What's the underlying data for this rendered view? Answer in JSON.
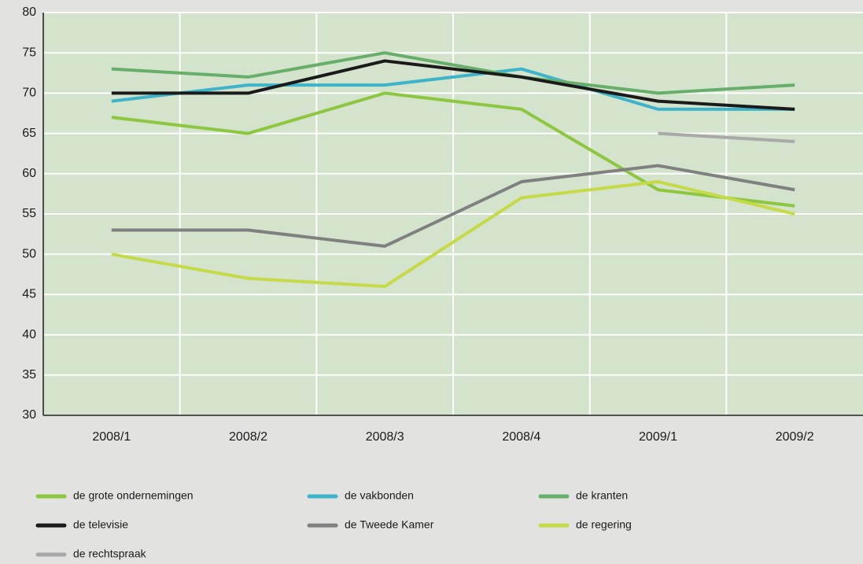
{
  "chart_data": {
    "type": "line",
    "categories": [
      "2008/1",
      "2008/2",
      "2008/3",
      "2008/4",
      "2009/1",
      "2009/2"
    ],
    "series": [
      {
        "name": "de grote ondernemingen",
        "color": "#8dc63f",
        "values": [
          67,
          65,
          70,
          68,
          58,
          56
        ]
      },
      {
        "name": "de vakbonden",
        "color": "#3db4c9",
        "values": [
          69,
          71,
          71,
          73,
          68,
          68
        ]
      },
      {
        "name": "de kranten",
        "color": "#66ae6a",
        "values": [
          73,
          72,
          75,
          72,
          70,
          71
        ]
      },
      {
        "name": "de televisie",
        "color": "#1a1a1a",
        "values": [
          70,
          70,
          74,
          72,
          69,
          68
        ]
      },
      {
        "name": "de Tweede Kamer",
        "color": "#808080",
        "values": [
          53,
          53,
          51,
          59,
          61,
          58
        ]
      },
      {
        "name": "de regering",
        "color": "#c6da48",
        "values": [
          50,
          47,
          46,
          57,
          59,
          55
        ]
      },
      {
        "name": "de rechtspraak",
        "color": "#a9a9a9",
        "values": [
          null,
          null,
          null,
          null,
          65,
          64
        ]
      }
    ],
    "ylim": [
      30,
      80
    ],
    "yticks": [
      30,
      35,
      40,
      45,
      50,
      55,
      60,
      65,
      70,
      75,
      80
    ],
    "grid": true
  }
}
